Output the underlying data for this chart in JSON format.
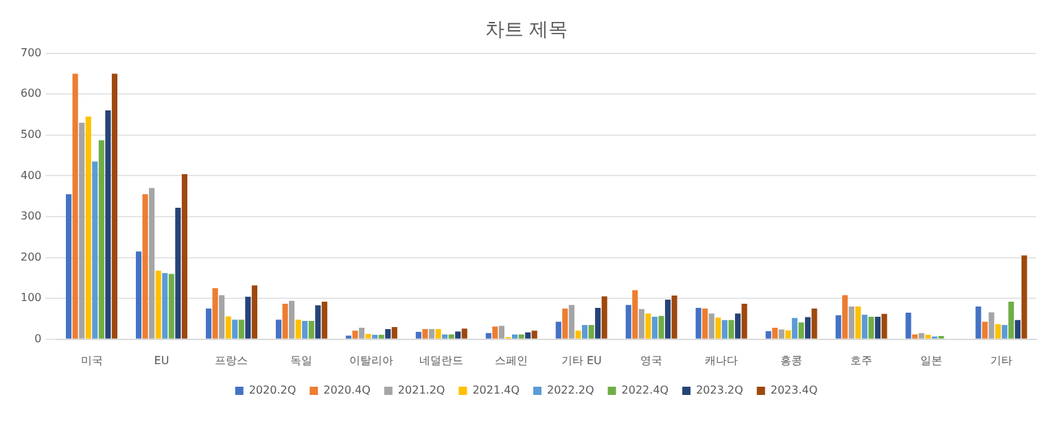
{
  "chart_data": {
    "type": "bar",
    "title": "차트 제목",
    "categories": [
      "미국",
      "EU",
      "프랑스",
      "독일",
      "이탈리아",
      "네덜란드",
      "스페인",
      "기타 EU",
      "영국",
      "캐나다",
      "홍콩",
      "호주",
      "일본",
      "기타"
    ],
    "series": [
      {
        "name": "2020.2Q",
        "color": "#4472c4",
        "values": [
          355,
          215,
          75,
          48,
          9,
          18,
          15,
          43,
          84,
          77,
          20,
          59,
          65,
          80
        ]
      },
      {
        "name": "2020.4Q",
        "color": "#ed7d31",
        "values": [
          650,
          355,
          125,
          87,
          21,
          25,
          31,
          75,
          120,
          75,
          28,
          108,
          12,
          43
        ]
      },
      {
        "name": "2021.2Q",
        "color": "#a5a5a5",
        "values": [
          530,
          370,
          108,
          94,
          28,
          25,
          33,
          84,
          74,
          63,
          24,
          80,
          15,
          66
        ]
      },
      {
        "name": "2021.4Q",
        "color": "#ffc000",
        "values": [
          545,
          168,
          56,
          48,
          13,
          25,
          5,
          21,
          63,
          53,
          22,
          80,
          11,
          37
        ]
      },
      {
        "name": "2022.2Q",
        "color": "#5b9bd5",
        "values": [
          435,
          162,
          48,
          45,
          11,
          12,
          12,
          35,
          55,
          47,
          52,
          60,
          7,
          35
        ]
      },
      {
        "name": "2022.4Q",
        "color": "#70ad47",
        "values": [
          487,
          160,
          48,
          45,
          11,
          12,
          12,
          35,
          57,
          47,
          41,
          55,
          8,
          92
        ]
      },
      {
        "name": "2023.2Q",
        "color": "#264478",
        "values": [
          560,
          322,
          104,
          83,
          25,
          19,
          17,
          77,
          97,
          63,
          54,
          55,
          null,
          47
        ]
      },
      {
        "name": "2023.4Q",
        "color": "#9e480e",
        "values": [
          650,
          404,
          132,
          92,
          30,
          26,
          21,
          105,
          107,
          87,
          75,
          62,
          null,
          205
        ]
      }
    ],
    "ylim": [
      0,
      700
    ],
    "yticks": [
      0,
      100,
      200,
      300,
      400,
      500,
      600,
      700
    ],
    "grid": "y",
    "legend": "bottom"
  }
}
